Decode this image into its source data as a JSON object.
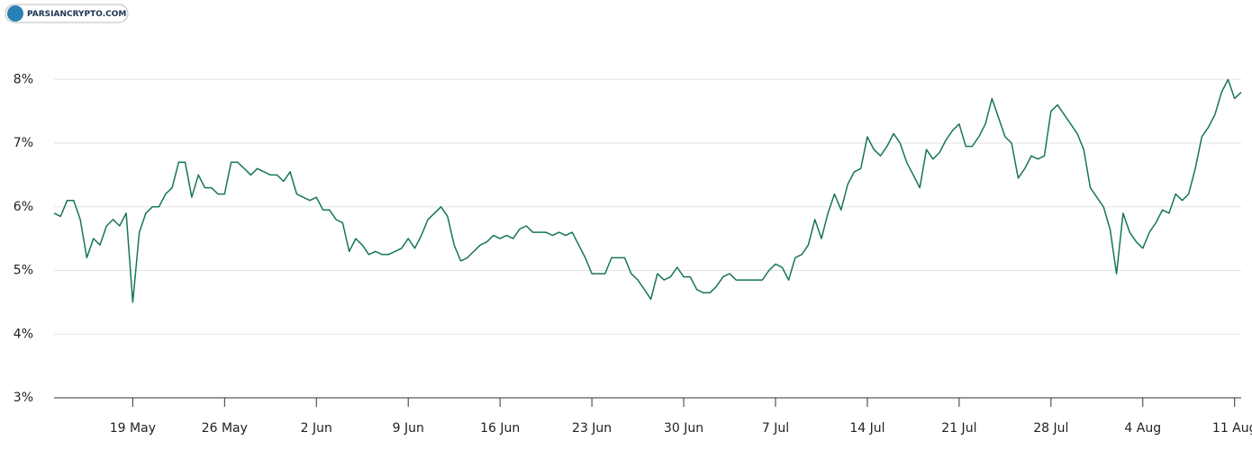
{
  "chart_data": {
    "type": "line",
    "logo": "PARSIANCRYPTO.COM",
    "categories": [
      null,
      null,
      null,
      null,
      null,
      null,
      null,
      null,
      null,
      null,
      null,
      null,
      "19 May",
      null,
      null,
      null,
      null,
      null,
      null,
      null,
      null,
      null,
      null,
      null,
      null,
      null,
      "26 May",
      null,
      null,
      null,
      null,
      null,
      null,
      null,
      null,
      null,
      null,
      null,
      null,
      null,
      "2 Jun",
      null,
      null,
      null,
      null,
      null,
      null,
      null,
      null,
      null,
      null,
      null,
      null,
      null,
      "9 Jun",
      null,
      null,
      null,
      null,
      null,
      null,
      null,
      null,
      null,
      null,
      null,
      null,
      null,
      "16 Jun",
      null,
      null,
      null,
      null,
      null,
      null,
      null,
      null,
      null,
      null,
      null,
      null,
      null,
      "23 Jun",
      null,
      null,
      null,
      null,
      null,
      null,
      null,
      null,
      null,
      null,
      null,
      null,
      null,
      "30 Jun",
      null,
      null,
      null,
      null,
      null,
      null,
      null,
      null,
      null,
      null,
      null,
      null,
      null,
      "7 Jul",
      null,
      null,
      null,
      null,
      null,
      null,
      null,
      null,
      null,
      null,
      null,
      null,
      null,
      "14 Jul",
      null,
      null,
      null,
      null,
      null,
      null,
      null,
      null,
      null,
      null,
      null,
      null,
      null,
      "21 Jul",
      null,
      null,
      null,
      null,
      null,
      null,
      null,
      null,
      null,
      null,
      null,
      null,
      null,
      "28 Jul",
      null,
      null,
      null,
      null,
      null,
      null,
      null,
      null,
      null,
      null,
      null,
      null,
      null,
      "4 Aug",
      null,
      null,
      null,
      null,
      null,
      null,
      null,
      null,
      null,
      null,
      null,
      null,
      null,
      "11 Aug",
      null
    ],
    "values": [
      5.9,
      5.85,
      6.1,
      6.1,
      5.8,
      5.2,
      5.5,
      5.4,
      5.7,
      5.8,
      5.7,
      5.9,
      4.5,
      5.6,
      5.9,
      6.0,
      6.0,
      6.2,
      6.3,
      6.7,
      6.7,
      6.15,
      6.5,
      6.3,
      6.3,
      6.2,
      6.2,
      6.7,
      6.7,
      6.6,
      6.5,
      6.6,
      6.55,
      6.5,
      6.5,
      6.4,
      6.55,
      6.2,
      6.15,
      6.1,
      6.15,
      5.95,
      5.95,
      5.8,
      5.75,
      5.3,
      5.5,
      5.4,
      5.25,
      5.3,
      5.25,
      5.25,
      5.3,
      5.35,
      5.5,
      5.35,
      5.55,
      5.8,
      5.9,
      6.0,
      5.85,
      5.4,
      5.15,
      5.2,
      5.3,
      5.4,
      5.45,
      5.55,
      5.5,
      5.55,
      5.5,
      5.65,
      5.7,
      5.6,
      5.6,
      5.6,
      5.55,
      5.6,
      5.55,
      5.6,
      5.4,
      5.2,
      4.95,
      4.95,
      4.95,
      5.2,
      5.2,
      5.2,
      4.95,
      4.85,
      4.7,
      4.55,
      4.95,
      4.85,
      4.9,
      5.05,
      4.9,
      4.9,
      4.7,
      4.65,
      4.65,
      4.75,
      4.9,
      4.95,
      4.85,
      4.85,
      4.85,
      4.85,
      4.85,
      5.0,
      5.1,
      5.05,
      4.85,
      5.2,
      5.25,
      5.4,
      5.8,
      5.5,
      5.9,
      6.2,
      5.95,
      6.35,
      6.55,
      6.6,
      7.1,
      6.9,
      6.8,
      6.95,
      7.15,
      7.0,
      6.7,
      6.5,
      6.3,
      6.9,
      6.75,
      6.85,
      7.05,
      7.2,
      7.3,
      6.95,
      6.95,
      7.1,
      7.3,
      7.7,
      7.4,
      7.1,
      7.0,
      6.45,
      6.6,
      6.8,
      6.75,
      6.8,
      7.5,
      7.6,
      7.45,
      7.3,
      7.15,
      6.9,
      6.3,
      6.15,
      6.0,
      5.65,
      4.95,
      5.9,
      5.6,
      5.45,
      5.35,
      5.6,
      5.75,
      5.95,
      5.9,
      6.2,
      6.1,
      6.2,
      6.6,
      7.1,
      7.25,
      7.45,
      7.8,
      8.0,
      7.7,
      7.8
    ],
    "color": "#16774f",
    "ylim": [
      3,
      8.4
    ],
    "yticks": [
      {
        "value": 3,
        "label": "3%"
      },
      {
        "value": 4,
        "label": "4%"
      },
      {
        "value": 5,
        "label": "5%"
      },
      {
        "value": 6,
        "label": "6%"
      },
      {
        "value": 7,
        "label": "7%"
      },
      {
        "value": 8,
        "label": "8%"
      }
    ],
    "grid": true
  }
}
